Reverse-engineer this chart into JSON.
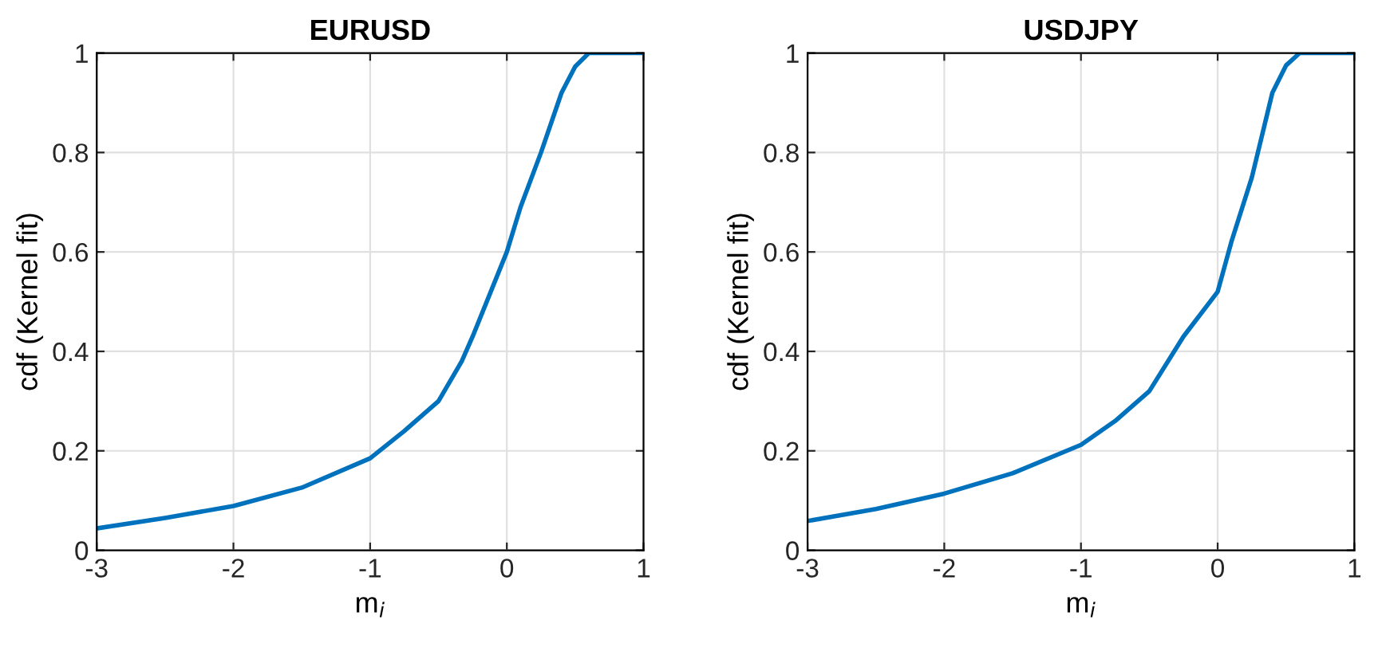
{
  "chart_data": [
    {
      "type": "line",
      "title": "EURUSD",
      "xlabel": "m$_{i}$",
      "ylabel": "cdf (Kernel fit)",
      "xlim": [
        -3,
        1
      ],
      "ylim": [
        0,
        1
      ],
      "xticks": [
        -3,
        -2,
        -1,
        0,
        1
      ],
      "yticks": [
        0,
        0.2,
        0.4,
        0.6,
        0.8,
        1
      ],
      "grid": true,
      "x": [
        -3,
        -2.5,
        -2,
        -1.5,
        -1,
        -0.75,
        -0.5,
        -0.33,
        -0.25,
        0,
        0.1,
        0.25,
        0.4,
        0.5,
        0.6,
        1
      ],
      "series": [
        {
          "color": "#0072bd",
          "values": [
            0.044,
            0.065,
            0.089,
            0.126,
            0.185,
            0.24,
            0.3,
            0.38,
            0.43,
            0.6,
            0.69,
            0.8,
            0.92,
            0.973,
            1,
            1
          ]
        }
      ]
    },
    {
      "type": "line",
      "title": "USDJPY",
      "xlabel": "m$_{i}$",
      "ylabel": "cdf (Kernel fit)",
      "xlim": [
        -3,
        1
      ],
      "ylim": [
        0,
        1
      ],
      "xticks": [
        -3,
        -2,
        -1,
        0,
        1
      ],
      "yticks": [
        0,
        0.2,
        0.4,
        0.6,
        0.8,
        1
      ],
      "grid": true,
      "x": [
        -3,
        -2.5,
        -2,
        -1.5,
        -1,
        -0.75,
        -0.5,
        -0.25,
        0,
        0.1,
        0.25,
        0.4,
        0.5,
        0.6,
        1
      ],
      "series": [
        {
          "color": "#0072bd",
          "values": [
            0.059,
            0.083,
            0.114,
            0.155,
            0.212,
            0.26,
            0.32,
            0.43,
            0.52,
            0.62,
            0.75,
            0.92,
            0.975,
            1,
            1
          ]
        }
      ]
    }
  ]
}
